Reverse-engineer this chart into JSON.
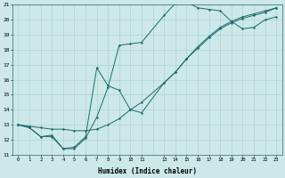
{
  "xlabel": "Humidex (Indice chaleur)",
  "bg_color": "#cce8e8",
  "line_color": "#1a6b6b",
  "grid_color": "#aacccc",
  "xlim": [
    -0.5,
    23.5
  ],
  "ylim": [
    11,
    21
  ],
  "xtick_positions": [
    0,
    1,
    2,
    3,
    4,
    5,
    6,
    7,
    8,
    9,
    10,
    11,
    13,
    14,
    15,
    16,
    17,
    18,
    19,
    20,
    21,
    22,
    23
  ],
  "xtick_labels": [
    "0",
    "1",
    "2",
    "3",
    "4",
    "5",
    "6",
    "7",
    "8",
    "9",
    "10",
    "11",
    "13",
    "14",
    "15",
    "16",
    "17",
    "18",
    "19",
    "20",
    "21",
    "22",
    "23"
  ],
  "yticks": [
    11,
    12,
    13,
    14,
    15,
    16,
    17,
    18,
    19,
    20,
    21
  ],
  "line1_x": [
    0,
    1,
    2,
    3,
    4,
    5,
    6,
    7,
    8,
    9,
    10,
    11,
    13,
    14,
    15,
    16,
    17,
    18,
    19,
    20,
    21,
    22,
    23
  ],
  "line1_y": [
    13.0,
    12.8,
    12.2,
    12.3,
    11.4,
    11.4,
    12.1,
    13.5,
    15.5,
    18.3,
    18.4,
    18.5,
    20.3,
    21.1,
    21.2,
    20.8,
    20.7,
    20.6,
    19.9,
    19.4,
    19.5,
    20.0,
    20.2
  ],
  "line2_x": [
    0,
    1,
    2,
    3,
    4,
    5,
    6,
    7,
    8,
    9,
    10,
    11,
    13,
    14,
    15,
    16,
    17,
    18,
    19,
    20,
    21,
    22,
    23
  ],
  "line2_y": [
    13.0,
    12.8,
    12.2,
    12.2,
    11.4,
    11.5,
    12.2,
    16.8,
    15.6,
    15.3,
    14.0,
    13.8,
    15.8,
    16.5,
    17.4,
    18.2,
    18.9,
    19.5,
    19.9,
    20.2,
    20.4,
    20.6,
    20.8
  ],
  "line3_x": [
    0,
    1,
    2,
    3,
    4,
    5,
    6,
    7,
    8,
    9,
    10,
    11,
    13,
    14,
    15,
    16,
    17,
    18,
    19,
    20,
    21,
    22,
    23
  ],
  "line3_y": [
    13.0,
    12.9,
    12.8,
    12.7,
    12.7,
    12.6,
    12.6,
    12.7,
    13.0,
    13.4,
    14.0,
    14.5,
    15.8,
    16.5,
    17.4,
    18.1,
    18.8,
    19.4,
    19.8,
    20.1,
    20.3,
    20.5,
    20.8
  ]
}
